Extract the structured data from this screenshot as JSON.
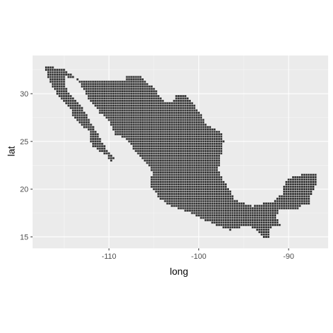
{
  "chart_data": {
    "type": "scatter",
    "title": "",
    "xlabel": "long",
    "ylabel": "lat",
    "xlim": [
      -118.5,
      -85.6
    ],
    "ylim": [
      13.8,
      34.0
    ],
    "x_ticks": [
      -110,
      -100,
      -90
    ],
    "x_tick_labels": [
      "-110",
      "-100",
      "-90"
    ],
    "y_ticks": [
      15,
      20,
      25,
      30
    ],
    "y_tick_labels": [
      "15",
      "20",
      "25",
      "30"
    ],
    "grid": true,
    "legend": "none",
    "grid_step_degrees": 0.25,
    "colors": {
      "panel": "#ebebeb",
      "grid_major": "#ffffff",
      "grid_minor": "#f5f5f5",
      "point": "#333333"
    },
    "region_outline": [
      [
        -117.1,
        32.8
      ],
      [
        -115.0,
        32.7
      ],
      [
        -114.7,
        32.3
      ],
      [
        -113.0,
        31.3
      ],
      [
        -111.1,
        31.3
      ],
      [
        -108.2,
        31.3
      ],
      [
        -108.2,
        31.8
      ],
      [
        -106.5,
        31.8
      ],
      [
        -105.0,
        30.6
      ],
      [
        -104.0,
        29.3
      ],
      [
        -103.1,
        29.0
      ],
      [
        -102.5,
        29.8
      ],
      [
        -101.4,
        29.8
      ],
      [
        -100.6,
        28.9
      ],
      [
        -99.5,
        27.5
      ],
      [
        -99.2,
        26.8
      ],
      [
        -97.5,
        25.9
      ],
      [
        -97.2,
        25.0
      ],
      [
        -97.6,
        23.0
      ],
      [
        -97.8,
        22.1
      ],
      [
        -97.3,
        21.0
      ],
      [
        -96.4,
        19.6
      ],
      [
        -95.9,
        18.8
      ],
      [
        -94.8,
        18.5
      ],
      [
        -94.0,
        18.2
      ],
      [
        -92.6,
        18.6
      ],
      [
        -91.8,
        18.7
      ],
      [
        -90.7,
        19.5
      ],
      [
        -90.4,
        20.9
      ],
      [
        -89.6,
        21.3
      ],
      [
        -88.2,
        21.6
      ],
      [
        -86.8,
        21.5
      ],
      [
        -86.8,
        20.8
      ],
      [
        -87.4,
        19.6
      ],
      [
        -87.8,
        18.3
      ],
      [
        -88.3,
        18.5
      ],
      [
        -88.9,
        17.9
      ],
      [
        -90.9,
        17.9
      ],
      [
        -91.4,
        17.3
      ],
      [
        -90.8,
        16.1
      ],
      [
        -91.9,
        16.1
      ],
      [
        -92.2,
        15.2
      ],
      [
        -92.3,
        14.6
      ],
      [
        -93.9,
        15.9
      ],
      [
        -94.8,
        16.2
      ],
      [
        -96.5,
        15.7
      ],
      [
        -98.5,
        16.4
      ],
      [
        -100.5,
        17.3
      ],
      [
        -101.9,
        17.9
      ],
      [
        -103.4,
        18.3
      ],
      [
        -104.3,
        19.0
      ],
      [
        -105.5,
        20.4
      ],
      [
        -105.3,
        21.1
      ],
      [
        -105.2,
        21.8
      ],
      [
        -105.7,
        22.6
      ],
      [
        -106.9,
        23.8
      ],
      [
        -108.0,
        25.2
      ],
      [
        -109.4,
        25.8
      ],
      [
        -109.9,
        27.1
      ],
      [
        -111.0,
        28.0
      ],
      [
        -112.2,
        29.3
      ],
      [
        -112.9,
        30.6
      ],
      [
        -113.7,
        31.6
      ],
      [
        -114.8,
        31.8
      ],
      [
        -114.9,
        30.9
      ],
      [
        -114.4,
        29.9
      ],
      [
        -113.1,
        28.8
      ],
      [
        -112.4,
        27.6
      ],
      [
        -111.6,
        26.3
      ],
      [
        -110.7,
        24.9
      ],
      [
        -110.2,
        24.0
      ],
      [
        -109.4,
        23.2
      ],
      [
        -109.9,
        22.9
      ],
      [
        -110.3,
        23.6
      ],
      [
        -111.7,
        24.4
      ],
      [
        -112.2,
        25.0
      ],
      [
        -112.2,
        26.1
      ],
      [
        -113.2,
        26.8
      ],
      [
        -114.1,
        27.6
      ],
      [
        -114.2,
        28.2
      ],
      [
        -115.2,
        29.3
      ],
      [
        -116.1,
        30.4
      ],
      [
        -116.7,
        31.6
      ],
      [
        -117.1,
        32.8
      ]
    ]
  }
}
